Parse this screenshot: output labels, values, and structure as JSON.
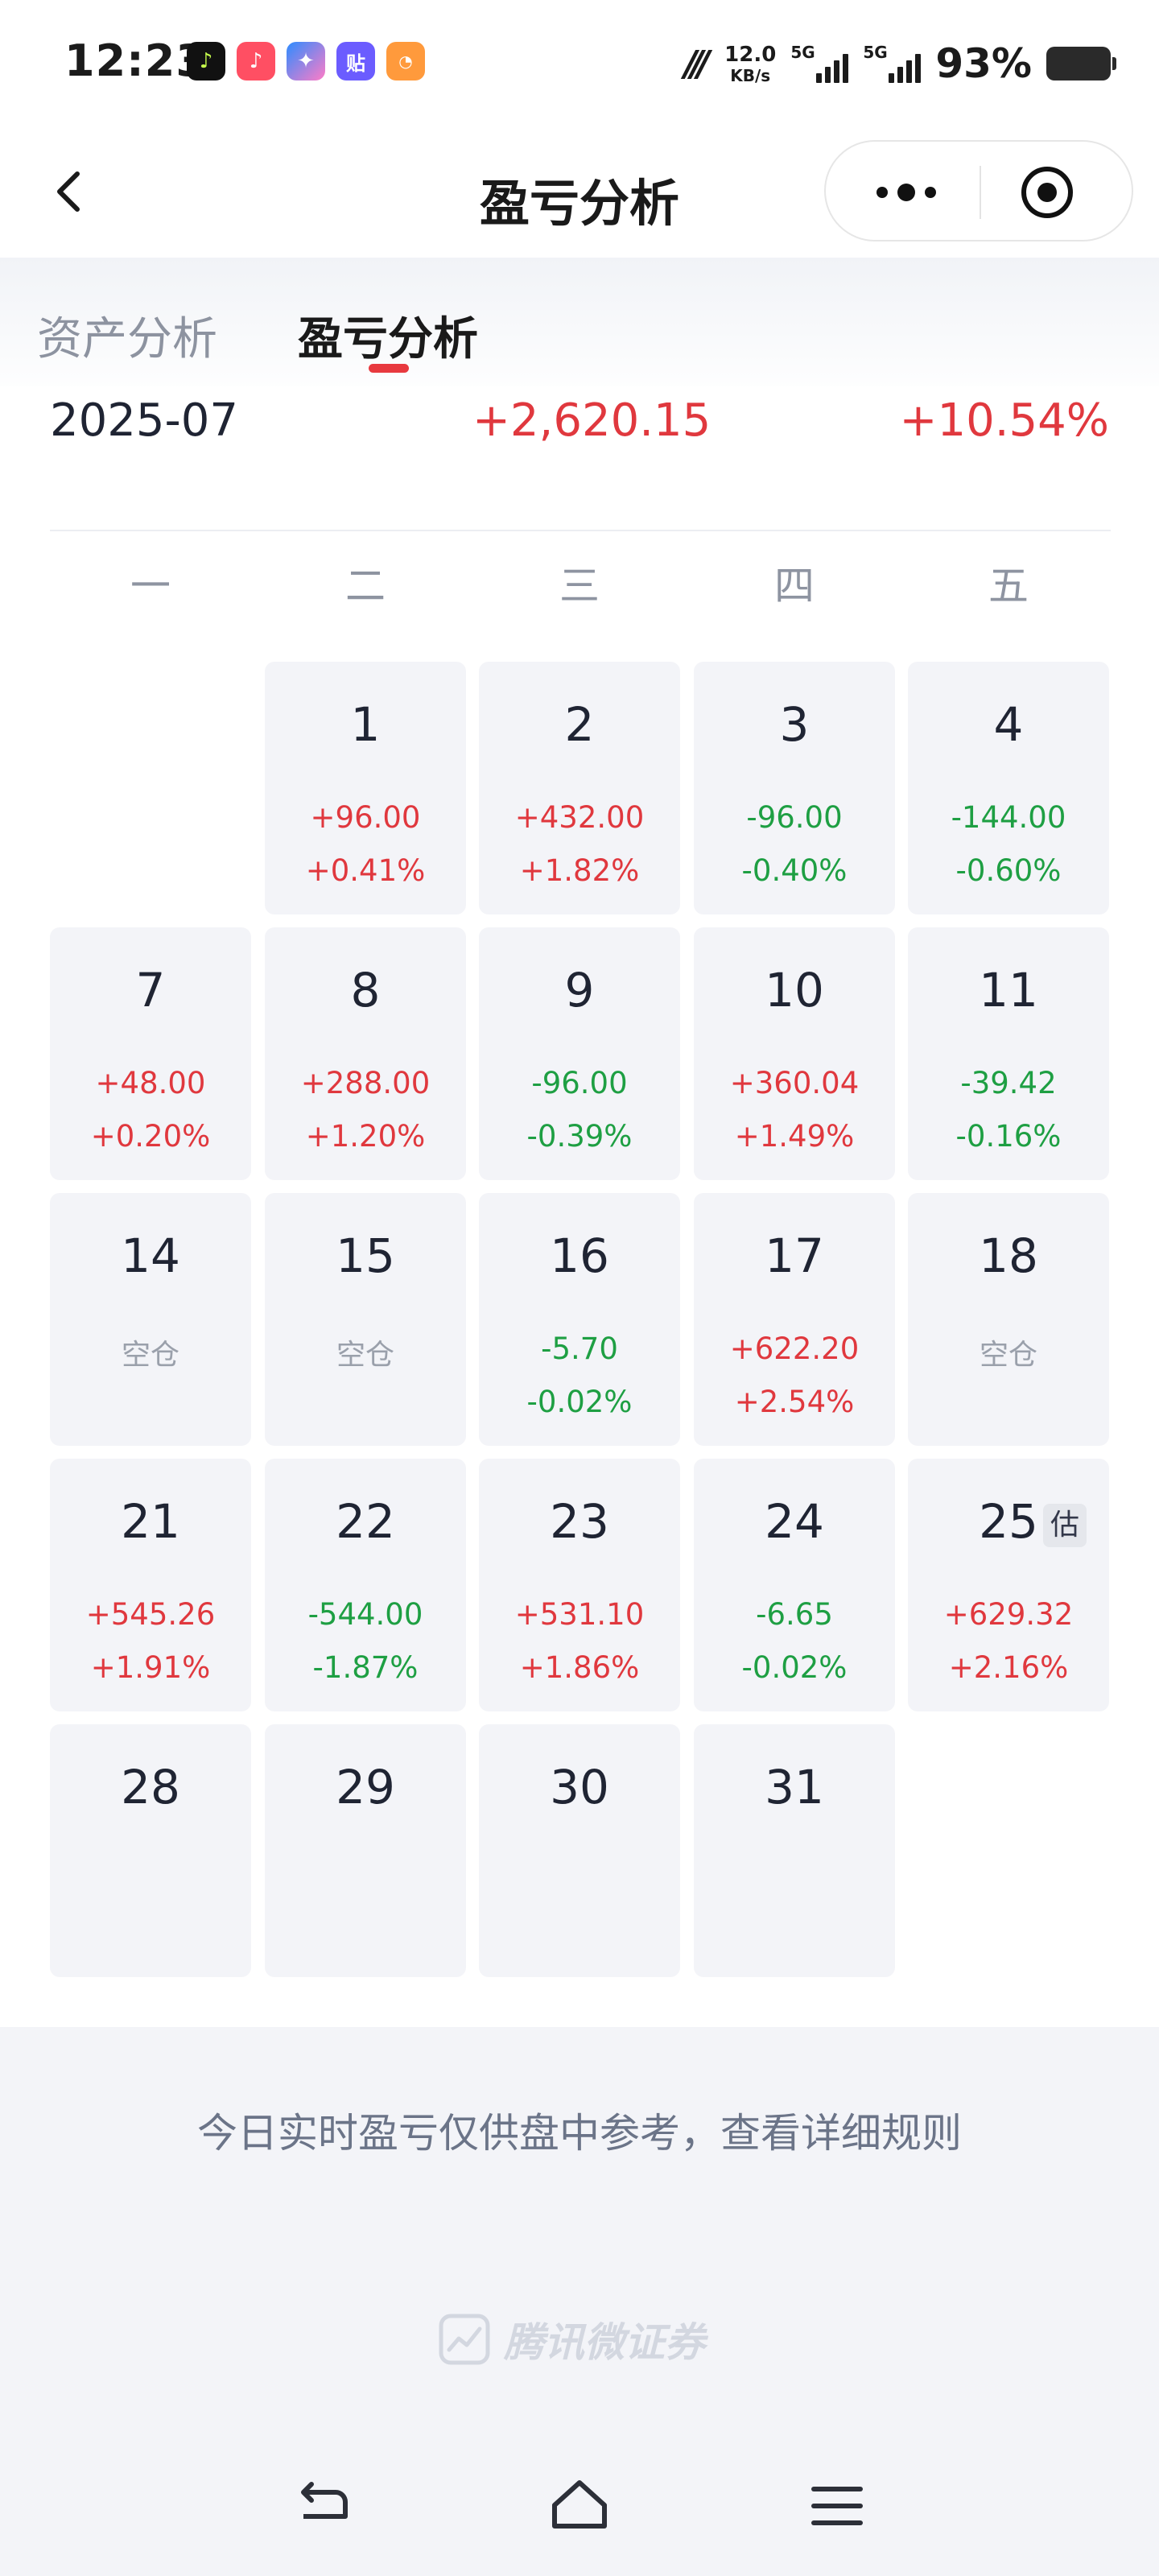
{
  "status_bar": {
    "time": "12:23",
    "net_speed_value": "12.0",
    "net_speed_unit": "KB/s",
    "sim1_label": "5G",
    "sim2_label": "5G",
    "battery": "93%",
    "app_icons": [
      "music-app-icon",
      "video-app-icon",
      "game-app-icon",
      "tieba-app-icon",
      "news-app-icon"
    ]
  },
  "nav": {
    "title": "盈亏分析",
    "back_icon": "chevron-left-icon",
    "more_icon": "more-dots-icon",
    "close_icon": "target-close-icon"
  },
  "tabs": [
    {
      "label": "资产分析",
      "active": false
    },
    {
      "label": "盈亏分析",
      "active": true
    }
  ],
  "summary": {
    "month": "2025-07",
    "amount": "+2,620.15",
    "pct": "+10.54%"
  },
  "weekdays": [
    "一",
    "二",
    "三",
    "四",
    "五"
  ],
  "calendar": [
    {
      "day": "1",
      "amount": "+96.00",
      "pct": "+0.41%",
      "trend": "up"
    },
    {
      "day": "2",
      "amount": "+432.00",
      "pct": "+1.82%",
      "trend": "up"
    },
    {
      "day": "3",
      "amount": "-96.00",
      "pct": "-0.40%",
      "trend": "down"
    },
    {
      "day": "4",
      "amount": "-144.00",
      "pct": "-0.60%",
      "trend": "down"
    },
    {
      "day": "7",
      "amount": "+48.00",
      "pct": "+0.20%",
      "trend": "up"
    },
    {
      "day": "8",
      "amount": "+288.00",
      "pct": "+1.20%",
      "trend": "up"
    },
    {
      "day": "9",
      "amount": "-96.00",
      "pct": "-0.39%",
      "trend": "down"
    },
    {
      "day": "10",
      "amount": "+360.04",
      "pct": "+1.49%",
      "trend": "up"
    },
    {
      "day": "11",
      "amount": "-39.42",
      "pct": "-0.16%",
      "trend": "down"
    },
    {
      "day": "14",
      "status": "空仓",
      "trend": "flat"
    },
    {
      "day": "15",
      "status": "空仓",
      "trend": "flat"
    },
    {
      "day": "16",
      "amount": "-5.70",
      "pct": "-0.02%",
      "trend": "down"
    },
    {
      "day": "17",
      "amount": "+622.20",
      "pct": "+2.54%",
      "trend": "up"
    },
    {
      "day": "18",
      "status": "空仓",
      "trend": "flat"
    },
    {
      "day": "21",
      "amount": "+545.26",
      "pct": "+1.91%",
      "trend": "up"
    },
    {
      "day": "22",
      "amount": "-544.00",
      "pct": "-1.87%",
      "trend": "down"
    },
    {
      "day": "23",
      "amount": "+531.10",
      "pct": "+1.86%",
      "trend": "up"
    },
    {
      "day": "24",
      "amount": "-6.65",
      "pct": "-0.02%",
      "trend": "down"
    },
    {
      "day": "25",
      "amount": "+629.32",
      "pct": "+2.16%",
      "trend": "up",
      "badge": "估"
    },
    {
      "day": "28",
      "trend": "none"
    },
    {
      "day": "29",
      "trend": "none"
    },
    {
      "day": "30",
      "trend": "none"
    },
    {
      "day": "31",
      "trend": "none"
    }
  ],
  "colors": {
    "up": "#e0383e",
    "down": "#1e9f43",
    "tab_indicator": "#e83a3f",
    "cell_bg": "#f3f4f8"
  },
  "footer": {
    "notice": "今日实时盈亏仅供盘中参考，查看详细规则",
    "brand": "腾讯微证券",
    "brand_icon": "chart-logo-icon"
  },
  "system_nav": [
    "back-icon",
    "home-icon",
    "menu-icon"
  ]
}
